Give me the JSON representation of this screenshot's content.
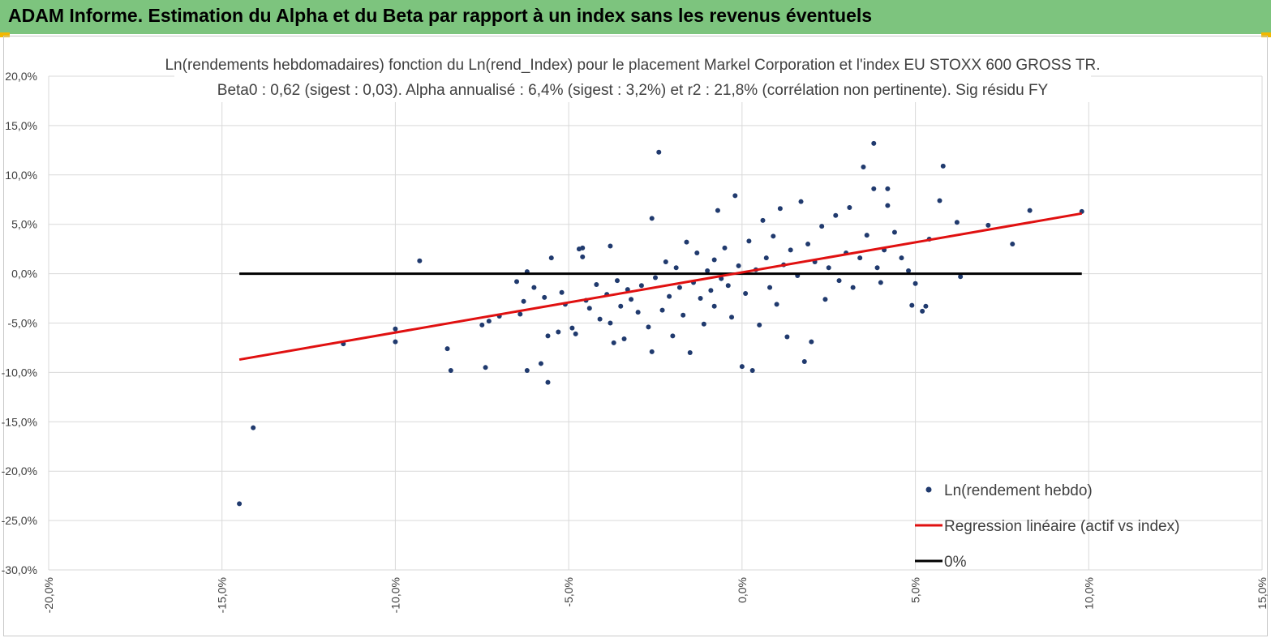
{
  "header": {
    "title": "ADAM Informe. Estimation du Alpha et du Beta par rapport à un index sans les revenus éventuels"
  },
  "colors": {
    "banner": "#7dc47e",
    "points": "#203a6e",
    "regression": "#e01010",
    "zero_line": "#000000",
    "grid": "#d9d9d9"
  },
  "chart_data": {
    "type": "scatter",
    "title": "Ln(rendements hebdomadaires) fonction du Ln(rend_Index) pour le placement Markel Corporation et l'index EU  STOXX 600 GROSS TR.",
    "subtitle": "Beta0 : 0,62  (sigest : 0,03). Alpha annualisé : 6,4% (sigest : 3,2%) et r2 : 21,8% (corrélation non pertinente). Sig résidu FY",
    "xlim": [
      -20,
      15
    ],
    "ylim": [
      -30,
      20
    ],
    "x_ticks": [
      -20,
      -15,
      -10,
      -5,
      0,
      5,
      10,
      15
    ],
    "y_ticks": [
      20,
      15,
      10,
      5,
      0,
      -5,
      -10,
      -15,
      -20,
      -25,
      -30
    ],
    "x_tick_labels": [
      "-20,0%",
      "-15,0%",
      "-10,0%",
      "-5,0%",
      "0,0%",
      "5,0%",
      "10,0%",
      "15,0%"
    ],
    "y_tick_labels": [
      "20,0%",
      "15,0%",
      "10,0%",
      "5,0%",
      "0,0%",
      "-5,0%",
      "-10,0%",
      "-15,0%",
      "-20,0%",
      "-25,0%",
      "-30,0%"
    ],
    "grid": "vertical and horizontal",
    "legend_position": "bottom-right",
    "series": [
      {
        "name": "Ln(rendement hebdo)",
        "kind": "points",
        "points": [
          [
            -14.5,
            -23.3
          ],
          [
            -14.1,
            -15.6
          ],
          [
            -11.5,
            -7.1
          ],
          [
            -10.0,
            -5.6
          ],
          [
            -10.0,
            -6.9
          ],
          [
            -9.3,
            1.3
          ],
          [
            -8.5,
            -7.6
          ],
          [
            -8.4,
            -9.8
          ],
          [
            -7.5,
            -5.2
          ],
          [
            -7.4,
            -9.5
          ],
          [
            -7.3,
            -4.8
          ],
          [
            -7.0,
            -4.3
          ],
          [
            -6.5,
            -0.8
          ],
          [
            -6.4,
            -4.1
          ],
          [
            -6.3,
            -2.8
          ],
          [
            -6.2,
            0.2
          ],
          [
            -6.2,
            -9.8
          ],
          [
            -6.0,
            -1.4
          ],
          [
            -5.8,
            -9.1
          ],
          [
            -5.7,
            -2.4
          ],
          [
            -5.6,
            -6.3
          ],
          [
            -5.6,
            -11.0
          ],
          [
            -5.5,
            1.6
          ],
          [
            -5.3,
            -5.9
          ],
          [
            -5.2,
            -1.9
          ],
          [
            -5.1,
            -3.1
          ],
          [
            -4.9,
            -5.5
          ],
          [
            -4.8,
            -6.1
          ],
          [
            -4.7,
            2.5
          ],
          [
            -4.6,
            2.6
          ],
          [
            -4.6,
            1.7
          ],
          [
            -4.5,
            -2.7
          ],
          [
            -4.4,
            -3.5
          ],
          [
            -4.2,
            -1.1
          ],
          [
            -4.1,
            -4.6
          ],
          [
            -3.9,
            -2.1
          ],
          [
            -3.8,
            -5.0
          ],
          [
            -3.8,
            2.8
          ],
          [
            -3.7,
            -7.0
          ],
          [
            -3.6,
            -0.7
          ],
          [
            -3.5,
            -3.3
          ],
          [
            -3.4,
            -6.6
          ],
          [
            -3.3,
            -1.6
          ],
          [
            -3.2,
            -2.6
          ],
          [
            -3.0,
            -3.9
          ],
          [
            -2.9,
            -1.2
          ],
          [
            -2.7,
            -5.4
          ],
          [
            -2.6,
            5.6
          ],
          [
            -2.6,
            -7.9
          ],
          [
            -2.5,
            -0.4
          ],
          [
            -2.4,
            12.3
          ],
          [
            -2.3,
            -3.7
          ],
          [
            -2.2,
            1.2
          ],
          [
            -2.1,
            -2.3
          ],
          [
            -2.0,
            -6.3
          ],
          [
            -1.9,
            0.6
          ],
          [
            -1.8,
            -1.4
          ],
          [
            -1.7,
            -4.2
          ],
          [
            -1.6,
            3.2
          ],
          [
            -1.5,
            -8.0
          ],
          [
            -1.4,
            -0.9
          ],
          [
            -1.3,
            2.1
          ],
          [
            -1.2,
            -2.5
          ],
          [
            -1.1,
            -5.1
          ],
          [
            -1.0,
            0.3
          ],
          [
            -0.9,
            -1.7
          ],
          [
            -0.8,
            1.4
          ],
          [
            -0.8,
            -3.3
          ],
          [
            -0.7,
            6.4
          ],
          [
            -0.6,
            -0.5
          ],
          [
            -0.5,
            2.6
          ],
          [
            -0.4,
            -1.2
          ],
          [
            -0.3,
            -4.4
          ],
          [
            -0.2,
            7.9
          ],
          [
            -0.1,
            0.8
          ],
          [
            0.0,
            -9.4
          ],
          [
            0.1,
            -2.0
          ],
          [
            0.2,
            3.3
          ],
          [
            0.3,
            -9.8
          ],
          [
            0.4,
            0.4
          ],
          [
            0.5,
            -5.2
          ],
          [
            0.6,
            5.4
          ],
          [
            0.7,
            1.6
          ],
          [
            0.8,
            -1.4
          ],
          [
            0.9,
            3.8
          ],
          [
            1.0,
            -3.1
          ],
          [
            1.1,
            6.6
          ],
          [
            1.2,
            0.9
          ],
          [
            1.3,
            -6.4
          ],
          [
            1.4,
            2.4
          ],
          [
            1.6,
            -0.2
          ],
          [
            1.7,
            7.3
          ],
          [
            1.8,
            -8.9
          ],
          [
            1.9,
            3.0
          ],
          [
            2.0,
            -6.9
          ],
          [
            2.1,
            1.2
          ],
          [
            2.3,
            4.8
          ],
          [
            2.4,
            -2.6
          ],
          [
            2.5,
            0.6
          ],
          [
            2.7,
            5.9
          ],
          [
            2.8,
            -0.7
          ],
          [
            3.0,
            2.1
          ],
          [
            3.1,
            6.7
          ],
          [
            3.2,
            -1.4
          ],
          [
            3.4,
            1.6
          ],
          [
            3.5,
            10.8
          ],
          [
            3.6,
            3.9
          ],
          [
            3.8,
            13.2
          ],
          [
            3.8,
            8.6
          ],
          [
            3.9,
            0.6
          ],
          [
            4.0,
            -0.9
          ],
          [
            4.1,
            2.4
          ],
          [
            4.2,
            8.6
          ],
          [
            4.2,
            6.9
          ],
          [
            4.4,
            4.2
          ],
          [
            4.6,
            1.6
          ],
          [
            4.8,
            0.3
          ],
          [
            4.9,
            -3.2
          ],
          [
            5.0,
            -1.0
          ],
          [
            5.2,
            -3.8
          ],
          [
            5.3,
            -3.3
          ],
          [
            5.4,
            3.5
          ],
          [
            5.7,
            7.4
          ],
          [
            5.8,
            10.9
          ],
          [
            6.2,
            5.2
          ],
          [
            6.3,
            -0.3
          ],
          [
            7.1,
            4.9
          ],
          [
            7.8,
            3.0
          ],
          [
            8.3,
            6.4
          ],
          [
            9.8,
            6.3
          ]
        ]
      },
      {
        "name": "Regression linéaire (actif vs index)",
        "kind": "line",
        "x": [
          -14.5,
          9.8
        ],
        "y": [
          -8.7,
          6.1
        ]
      },
      {
        "name": "0%",
        "kind": "line",
        "x": [
          -14.5,
          9.8
        ],
        "y": [
          0,
          0
        ]
      }
    ]
  }
}
